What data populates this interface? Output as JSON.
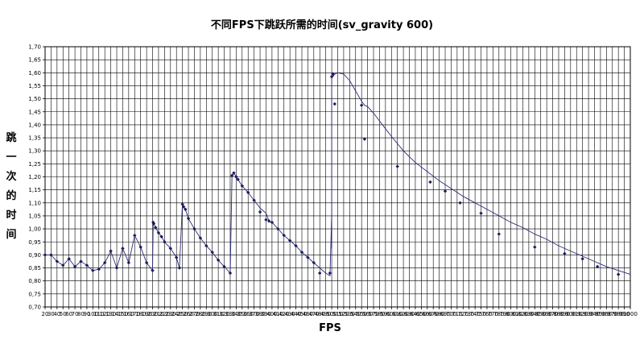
{
  "chart_data": {
    "type": "line",
    "title": "不同FPS下跳跃所需的时间(sv_gravity 600)",
    "xlabel": "FPS",
    "ylabel_chars": [
      "跳",
      "一",
      "次",
      "的",
      "时",
      "间"
    ],
    "xlim": [
      20,
      1000
    ],
    "ylim": [
      0.7,
      1.7
    ],
    "x_ticks": [
      20,
      30,
      40,
      50,
      60,
      70,
      80,
      90,
      100,
      110,
      120,
      130,
      140,
      150,
      160,
      170,
      180,
      190,
      200,
      210,
      220,
      230,
      240,
      250,
      260,
      270,
      280,
      290,
      300,
      310,
      320,
      330,
      340,
      350,
      360,
      370,
      380,
      390,
      400,
      410,
      420,
      430,
      440,
      450,
      460,
      470,
      480,
      490,
      500,
      510,
      520,
      530,
      540,
      550,
      560,
      570,
      580,
      590,
      600,
      610,
      620,
      630,
      640,
      650,
      660,
      670,
      680,
      690,
      700,
      710,
      720,
      730,
      740,
      750,
      760,
      770,
      780,
      790,
      800,
      810,
      820,
      830,
      840,
      850,
      860,
      870,
      880,
      890,
      900,
      910,
      920,
      930,
      940,
      950,
      960,
      970,
      980,
      990,
      1000
    ],
    "y_ticks": [
      "0,70",
      "0,75",
      "0,80",
      "0,85",
      "0,90",
      "0,95",
      "1,00",
      "1,05",
      "1,10",
      "1,15",
      "1,20",
      "1,25",
      "1,30",
      "1,35",
      "1,40",
      "1,45",
      "1,50",
      "1,55",
      "1,60",
      "1,65",
      "1,70"
    ],
    "grid": true,
    "line_color": "#2b2b7a",
    "marker_color": "#1a1a5e",
    "series": [
      {
        "x": [
          20,
          30,
          40,
          50,
          60,
          70,
          80,
          90,
          100,
          110,
          120,
          130,
          140,
          150,
          160,
          170,
          180,
          190,
          200,
          201,
          202,
          205,
          210,
          215,
          220,
          230,
          240,
          245,
          250,
          252,
          255,
          260,
          270,
          280,
          290,
          300,
          310,
          320,
          330,
          333,
          336,
          340,
          343,
          350,
          360,
          370,
          380,
          390,
          395,
          400,
          410,
          420,
          430,
          440,
          450,
          460,
          470,
          480,
          490,
          497,
          500,
          500,
          500,
          500,
          502,
          505,
          510,
          520,
          530,
          540,
          550,
          555,
          560,
          570,
          580,
          590,
          600,
          620,
          640,
          660,
          680,
          700,
          720,
          740,
          760,
          780,
          800,
          820,
          840,
          860,
          880,
          900,
          920,
          940,
          960,
          980,
          1000
        ],
        "y": [
          0.9,
          0.9,
          0.875,
          0.86,
          0.885,
          0.855,
          0.875,
          0.86,
          0.84,
          0.845,
          0.87,
          0.915,
          0.85,
          0.925,
          0.87,
          0.975,
          0.93,
          0.87,
          0.84,
          1.025,
          1.02,
          1.005,
          0.985,
          0.97,
          0.95,
          0.925,
          0.89,
          0.85,
          1.095,
          1.085,
          1.075,
          1.04,
          1.0,
          0.965,
          0.935,
          0.91,
          0.88,
          0.855,
          0.83,
          1.205,
          1.215,
          1.2,
          1.19,
          1.165,
          1.14,
          1.11,
          1.08,
          1.06,
          1.03,
          1.025,
          1.0,
          0.975,
          0.955,
          0.935,
          0.91,
          0.89,
          0.87,
          0.85,
          0.83,
          0.82,
          1.06,
          0.925,
          1.45,
          1.58,
          1.585,
          1.595,
          1.6,
          1.595,
          1.57,
          1.53,
          1.49,
          1.475,
          1.47,
          1.445,
          1.415,
          1.385,
          1.355,
          1.3,
          1.255,
          1.22,
          1.185,
          1.155,
          1.125,
          1.1,
          1.075,
          1.05,
          1.025,
          1.005,
          0.98,
          0.96,
          0.935,
          0.915,
          0.895,
          0.875,
          0.855,
          0.84,
          0.825
        ]
      }
    ],
    "marker_x": [
      20,
      30,
      40,
      50,
      60,
      70,
      80,
      90,
      100,
      110,
      120,
      130,
      140,
      150,
      160,
      170,
      180,
      190,
      200,
      201,
      202,
      205,
      210,
      215,
      220,
      230,
      240,
      245,
      250,
      252,
      255,
      260,
      270,
      280,
      290,
      300,
      310,
      320,
      330,
      333,
      336,
      340,
      343,
      350,
      360,
      370,
      380,
      390,
      395,
      400,
      410,
      420,
      430,
      440,
      450,
      460,
      470,
      480,
      497,
      500,
      502,
      505,
      550,
      555,
      610,
      665,
      690,
      715,
      750,
      780,
      840,
      890,
      920,
      945,
      980,
      1000
    ],
    "marker_y": [
      0.9,
      0.9,
      0.875,
      0.86,
      0.885,
      0.855,
      0.875,
      0.86,
      0.84,
      0.845,
      0.87,
      0.915,
      0.85,
      0.925,
      0.87,
      0.975,
      0.93,
      0.87,
      0.84,
      1.025,
      1.02,
      1.005,
      0.985,
      0.97,
      0.95,
      0.925,
      0.89,
      0.85,
      1.095,
      1.085,
      1.075,
      1.04,
      1.0,
      0.965,
      0.935,
      0.91,
      0.88,
      0.855,
      0.83,
      1.205,
      1.215,
      1.2,
      1.19,
      1.165,
      1.14,
      1.11,
      1.065,
      1.035,
      1.03,
      1.025,
      1.0,
      0.975,
      0.955,
      0.935,
      0.91,
      0.89,
      0.87,
      0.83,
      0.83,
      1.585,
      1.595,
      1.48,
      1.475,
      1.345,
      1.24,
      1.18,
      1.145,
      1.1,
      1.06,
      0.98,
      0.93,
      0.905,
      0.885,
      0.855,
      0.825
    ]
  }
}
